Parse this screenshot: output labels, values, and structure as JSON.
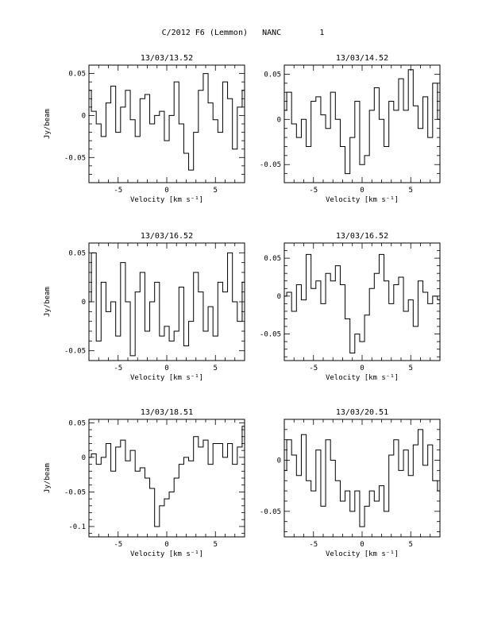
{
  "header": {
    "object": "C/2012 F6 (Lemmon)",
    "molecule": "NANC",
    "page_number": "1"
  },
  "colors": {
    "line": "#000000",
    "frame": "#000000",
    "background": "#ffffff"
  },
  "chart_data": [
    {
      "type": "line",
      "title": "13/03/13.52",
      "xlabel": "Velocity [km s⁻¹]",
      "ylabel": "Jy/beam",
      "xlim": [
        -8,
        8
      ],
      "ylim": [
        -0.08,
        0.06
      ],
      "xticks": [
        -5,
        0,
        5
      ],
      "yticks": [
        0.05,
        0,
        -0.05
      ],
      "ytick_labels": [
        "0.05",
        "0",
        "-0.05"
      ],
      "series": [
        {
          "x": [
            -8,
            -7.5,
            -7,
            -6.5,
            -6,
            -5.5,
            -5,
            -4.5,
            -4,
            -3.5,
            -3,
            -2.5,
            -2,
            -1.5,
            -1,
            -0.5,
            0,
            0.5,
            1,
            1.5,
            2,
            2.5,
            3,
            3.5,
            4,
            4.5,
            5,
            5.5,
            6,
            6.5,
            7,
            7.5,
            8
          ],
          "values": [
            0.03,
            0.005,
            -0.01,
            -0.025,
            0.015,
            0.035,
            -0.02,
            0.01,
            0.03,
            -0.005,
            -0.025,
            0.02,
            0.025,
            -0.01,
            0.0,
            0.005,
            -0.03,
            0.0,
            0.04,
            -0.01,
            -0.045,
            -0.065,
            -0.02,
            0.03,
            0.05,
            0.015,
            -0.005,
            -0.02,
            0.04,
            0.02,
            -0.04,
            0.01,
            0.03
          ]
        }
      ]
    },
    {
      "type": "line",
      "title": "13/03/14.52",
      "xlabel": "Velocity [km s⁻¹]",
      "ylabel": "",
      "xlim": [
        -8,
        8
      ],
      "ylim": [
        -0.07,
        0.06
      ],
      "xticks": [
        -5,
        0,
        5
      ],
      "yticks": [
        0.05,
        0,
        -0.05
      ],
      "ytick_labels": [
        "0.05",
        "0",
        "-0.05"
      ],
      "series": [
        {
          "x": [
            -8,
            -7.5,
            -7,
            -6.5,
            -6,
            -5.5,
            -5,
            -4.5,
            -4,
            -3.5,
            -3,
            -2.5,
            -2,
            -1.5,
            -1,
            -0.5,
            0,
            0.5,
            1,
            1.5,
            2,
            2.5,
            3,
            3.5,
            4,
            4.5,
            5,
            5.5,
            6,
            6.5,
            7,
            7.5,
            8
          ],
          "values": [
            0.01,
            0.03,
            -0.005,
            -0.02,
            0.0,
            -0.03,
            0.02,
            0.025,
            0.005,
            -0.01,
            0.03,
            0.0,
            -0.03,
            -0.06,
            -0.02,
            0.02,
            -0.05,
            -0.04,
            0.01,
            0.035,
            0.0,
            -0.03,
            0.02,
            0.01,
            0.045,
            0.01,
            0.055,
            0.015,
            -0.01,
            0.025,
            -0.02,
            0.04,
            0.0
          ]
        }
      ]
    },
    {
      "type": "line",
      "title": "13/03/16.52",
      "xlabel": "Velocity [km s⁻¹]",
      "ylabel": "Jy/beam",
      "xlim": [
        -8,
        8
      ],
      "ylim": [
        -0.06,
        0.06
      ],
      "xticks": [
        -5,
        0,
        5
      ],
      "yticks": [
        0.05,
        0,
        -0.05
      ],
      "ytick_labels": [
        "0.05",
        "0",
        "-0.05"
      ],
      "series": [
        {
          "x": [
            -8,
            -7.5,
            -7,
            -6.5,
            -6,
            -5.5,
            -5,
            -4.5,
            -4,
            -3.5,
            -3,
            -2.5,
            -2,
            -1.5,
            -1,
            -0.5,
            0,
            0.5,
            1,
            1.5,
            2,
            2.5,
            3,
            3.5,
            4,
            4.5,
            5,
            5.5,
            6,
            6.5,
            7,
            7.5,
            8
          ],
          "values": [
            0.0,
            0.05,
            -0.04,
            0.02,
            -0.01,
            0.0,
            -0.035,
            0.04,
            0.0,
            -0.055,
            0.01,
            0.03,
            -0.03,
            0.0,
            0.02,
            -0.035,
            -0.025,
            -0.04,
            -0.03,
            0.015,
            -0.045,
            -0.02,
            0.03,
            0.01,
            -0.03,
            -0.005,
            -0.035,
            0.02,
            0.01,
            0.05,
            0.0,
            -0.02,
            0.02
          ]
        }
      ]
    },
    {
      "type": "line",
      "title": "13/03/16.52",
      "xlabel": "Velocity [km s⁻¹]",
      "ylabel": "",
      "xlim": [
        -8,
        8
      ],
      "ylim": [
        -0.085,
        0.07
      ],
      "xticks": [
        -5,
        0,
        5
      ],
      "yticks": [
        0.05,
        0,
        -0.05
      ],
      "ytick_labels": [
        "0.05",
        "0",
        "-0.05"
      ],
      "series": [
        {
          "x": [
            -8,
            -7.5,
            -7,
            -6.5,
            -6,
            -5.5,
            -5,
            -4.5,
            -4,
            -3.5,
            -3,
            -2.5,
            -2,
            -1.5,
            -1,
            -0.5,
            0,
            0.5,
            1,
            1.5,
            2,
            2.5,
            3,
            3.5,
            4,
            4.5,
            5,
            5.5,
            6,
            6.5,
            7,
            7.5,
            8
          ],
          "values": [
            0.0,
            0.005,
            -0.02,
            0.015,
            -0.005,
            0.055,
            0.01,
            0.02,
            -0.01,
            0.03,
            0.02,
            0.04,
            0.015,
            -0.03,
            -0.075,
            -0.05,
            -0.06,
            -0.025,
            0.01,
            0.03,
            0.055,
            0.02,
            -0.01,
            0.015,
            0.025,
            -0.02,
            -0.005,
            -0.04,
            0.02,
            0.005,
            -0.01,
            0.0,
            -0.005
          ]
        }
      ]
    },
    {
      "type": "line",
      "title": "13/03/18.51",
      "xlabel": "Velocity [km s⁻¹]",
      "ylabel": "Jy/beam",
      "xlim": [
        -8,
        8
      ],
      "ylim": [
        -0.115,
        0.055
      ],
      "xticks": [
        -5,
        0,
        5
      ],
      "yticks": [
        0.05,
        0,
        -0.05,
        -0.1
      ],
      "ytick_labels": [
        "0.05",
        "0",
        "-0.05",
        "-0.1"
      ],
      "series": [
        {
          "x": [
            -8,
            -7.5,
            -7,
            -6.5,
            -6,
            -5.5,
            -5,
            -4.5,
            -4,
            -3.5,
            -3,
            -2.5,
            -2,
            -1.5,
            -1,
            -0.5,
            0,
            0.5,
            1,
            1.5,
            2,
            2.5,
            3,
            3.5,
            4,
            4.5,
            5,
            5.5,
            6,
            6.5,
            7,
            7.5,
            8
          ],
          "values": [
            0.0,
            0.005,
            -0.01,
            0.0,
            0.02,
            -0.02,
            0.015,
            0.025,
            -0.005,
            0.01,
            -0.02,
            -0.015,
            -0.03,
            -0.045,
            -0.1,
            -0.07,
            -0.06,
            -0.05,
            -0.03,
            -0.01,
            0.0,
            -0.005,
            0.03,
            0.015,
            0.025,
            -0.01,
            0.02,
            0.02,
            0.0,
            0.02,
            -0.01,
            0.015,
            0.045
          ]
        }
      ]
    },
    {
      "type": "line",
      "title": "13/03/20.51",
      "xlabel": "Velocity [km s⁻¹]",
      "ylabel": "",
      "xlim": [
        -8,
        8
      ],
      "ylim": [
        -0.075,
        0.04
      ],
      "xticks": [
        -5,
        0,
        5
      ],
      "yticks": [
        0,
        -0.05
      ],
      "ytick_labels": [
        "0",
        "-0.05"
      ],
      "series": [
        {
          "x": [
            -8,
            -7.5,
            -7,
            -6.5,
            -6,
            -5.5,
            -5,
            -4.5,
            -4,
            -3.5,
            -3,
            -2.5,
            -2,
            -1.5,
            -1,
            -0.5,
            0,
            0.5,
            1,
            1.5,
            2,
            2.5,
            3,
            3.5,
            4,
            4.5,
            5,
            5.5,
            6,
            6.5,
            7,
            7.5,
            8
          ],
          "values": [
            -0.01,
            0.02,
            0.005,
            -0.015,
            0.025,
            -0.02,
            -0.03,
            0.01,
            -0.045,
            0.02,
            0.0,
            -0.02,
            -0.04,
            -0.03,
            -0.05,
            -0.03,
            -0.065,
            -0.045,
            -0.03,
            -0.04,
            -0.025,
            -0.05,
            0.005,
            0.02,
            -0.01,
            0.01,
            -0.015,
            0.015,
            0.03,
            -0.005,
            0.015,
            -0.02,
            -0.03
          ]
        }
      ]
    }
  ]
}
